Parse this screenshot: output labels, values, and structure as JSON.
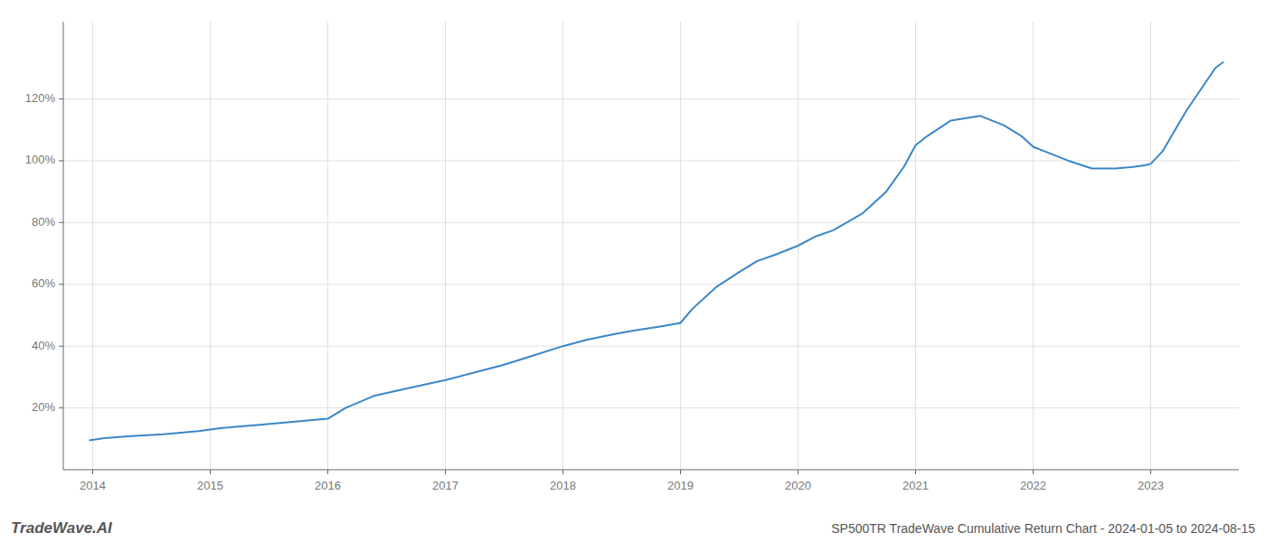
{
  "chart_data": {
    "type": "line",
    "title": "SP500TR TradeWave Cumulative Return Chart - 2024-01-05 to 2024-08-15",
    "annotations": [
      "TradeWave.AI"
    ],
    "x": [
      2013.97,
      2014.1,
      2014.3,
      2014.6,
      2014.9,
      2015.1,
      2015.4,
      2015.7,
      2016.0,
      2016.15,
      2016.4,
      2016.7,
      2017.0,
      2017.25,
      2017.5,
      2017.75,
      2018.0,
      2018.2,
      2018.45,
      2018.6,
      2018.85,
      2019.0,
      2019.1,
      2019.3,
      2019.5,
      2019.65,
      2019.8,
      2020.0,
      2020.15,
      2020.3,
      2020.55,
      2020.75,
      2020.9,
      2021.0,
      2021.1,
      2021.3,
      2021.55,
      2021.75,
      2021.9,
      2022.0,
      2022.1,
      2022.3,
      2022.5,
      2022.7,
      2022.85,
      2022.95,
      2023.0,
      2023.1,
      2023.3,
      2023.55,
      2023.62
    ],
    "values": [
      9.5,
      10.2,
      10.8,
      11.5,
      12.5,
      13.5,
      14.5,
      15.5,
      16.5,
      20.0,
      24.0,
      26.5,
      29.0,
      31.5,
      34.0,
      37.0,
      40.0,
      42.0,
      44.0,
      45.0,
      46.5,
      47.5,
      52.0,
      59.0,
      64.0,
      67.5,
      69.5,
      72.5,
      75.5,
      77.5,
      83.0,
      90.0,
      98.0,
      105.0,
      108.0,
      113.0,
      114.5,
      111.5,
      108.0,
      104.5,
      103.0,
      100.0,
      97.5,
      97.5,
      98.0,
      98.5,
      99.0,
      103.0,
      116.0,
      130.0,
      132.0
    ],
    "color": "#3a86c8",
    "xlim": [
      2013.75,
      2023.75
    ],
    "xticks": [
      2014,
      2015,
      2016,
      2017,
      2018,
      2019,
      2020,
      2021,
      2022,
      2023
    ],
    "ylim": [
      0,
      145
    ],
    "yticks": [
      {
        "value": 20,
        "label": "20%"
      },
      {
        "value": 40,
        "label": "40%"
      },
      {
        "value": 60,
        "label": "60%"
      },
      {
        "value": 80,
        "label": "80%"
      },
      {
        "value": 100,
        "label": "100%"
      },
      {
        "value": 120,
        "label": "120%"
      }
    ],
    "grid": true
  }
}
